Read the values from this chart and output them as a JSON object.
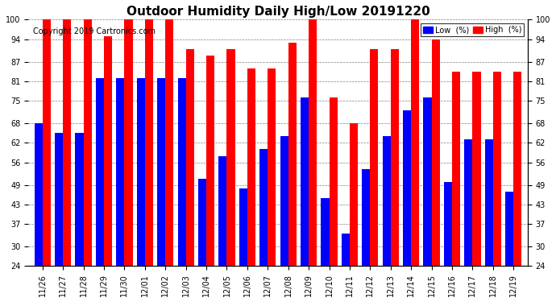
{
  "title": "Outdoor Humidity Daily High/Low 20191220",
  "copyright": "Copyright 2019 Cartronics.com",
  "dates": [
    "11/26",
    "11/27",
    "11/28",
    "11/29",
    "11/30",
    "12/01",
    "12/02",
    "12/03",
    "12/04",
    "12/05",
    "12/06",
    "12/07",
    "12/08",
    "12/09",
    "12/10",
    "12/11",
    "12/12",
    "12/13",
    "12/14",
    "12/15",
    "12/16",
    "12/17",
    "12/18",
    "12/19"
  ],
  "high": [
    100,
    100,
    100,
    95,
    100,
    100,
    100,
    91,
    89,
    91,
    85,
    85,
    93,
    100,
    76,
    68,
    91,
    91,
    100,
    94,
    84,
    84,
    84,
    84
  ],
  "low": [
    68,
    65,
    65,
    82,
    82,
    82,
    82,
    82,
    51,
    58,
    48,
    60,
    64,
    76,
    45,
    34,
    54,
    64,
    72,
    76,
    50,
    63,
    63,
    47
  ],
  "high_color": "#ff0000",
  "low_color": "#0000ff",
  "bg_color": "#ffffff",
  "ylim_min": 24,
  "ylim_max": 100,
  "yticks": [
    24,
    30,
    37,
    43,
    49,
    56,
    62,
    68,
    75,
    81,
    87,
    94,
    100
  ],
  "bar_width": 0.4,
  "legend_low_label": "Low  (%)",
  "legend_high_label": "High  (%)"
}
